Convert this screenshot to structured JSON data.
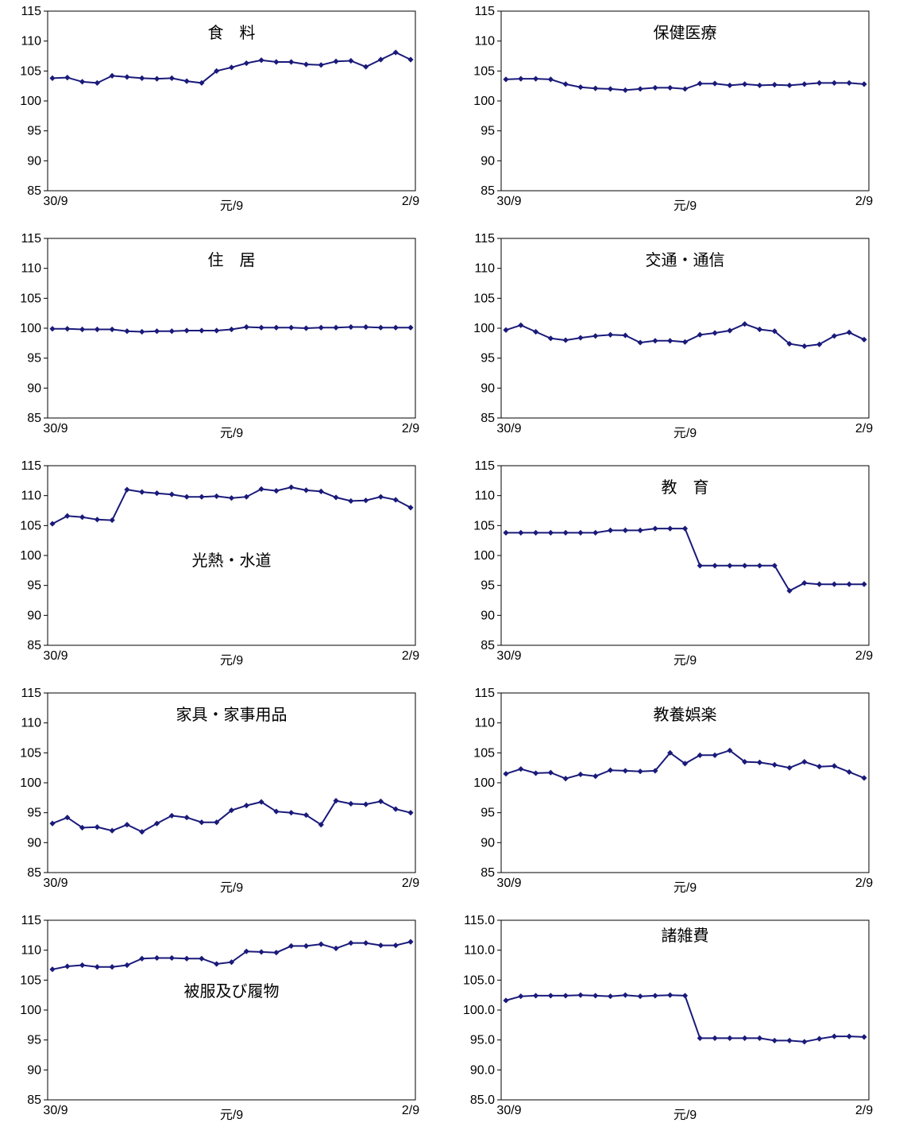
{
  "line_color": "#1a1a7a",
  "chart_data": [
    {
      "type": "line",
      "title": "食　料",
      "xticks": [
        "30/9",
        "元/9",
        "2/9"
      ],
      "ylim": [
        85,
        115
      ],
      "yticks": [
        "85",
        "90",
        "95",
        "100",
        "105",
        "110",
        "115"
      ],
      "values": [
        103.8,
        103.9,
        103.2,
        103.0,
        104.2,
        104.0,
        103.8,
        103.7,
        103.8,
        103.3,
        103.0,
        105.0,
        105.6,
        106.3,
        106.8,
        106.5,
        106.5,
        106.1,
        106.0,
        106.6,
        106.7,
        105.7,
        106.9,
        108.1,
        106.9
      ]
    },
    {
      "type": "line",
      "title": "保健医療",
      "xticks": [
        "30/9",
        "元/9",
        "2/9"
      ],
      "ylim": [
        85,
        115
      ],
      "yticks": [
        "85",
        "90",
        "95",
        "100",
        "105",
        "110",
        "115"
      ],
      "values": [
        103.6,
        103.7,
        103.7,
        103.6,
        102.8,
        102.3,
        102.1,
        102.0,
        101.8,
        102.0,
        102.2,
        102.2,
        102.0,
        102.9,
        102.9,
        102.6,
        102.8,
        102.6,
        102.7,
        102.6,
        102.8,
        103.0,
        103.0,
        103.0,
        102.8
      ]
    },
    {
      "type": "line",
      "title": "住　居",
      "xticks": [
        "30/9",
        "元/9",
        "2/9"
      ],
      "ylim": [
        85,
        115
      ],
      "yticks": [
        "85",
        "90",
        "95",
        "100",
        "105",
        "110",
        "115"
      ],
      "values": [
        99.9,
        99.9,
        99.8,
        99.8,
        99.8,
        99.5,
        99.4,
        99.5,
        99.5,
        99.6,
        99.6,
        99.6,
        99.8,
        100.2,
        100.1,
        100.1,
        100.1,
        100.0,
        100.1,
        100.1,
        100.2,
        100.2,
        100.1,
        100.1,
        100.1
      ]
    },
    {
      "type": "line",
      "title": "交通・通信",
      "xticks": [
        "30/9",
        "元/9",
        "2/9"
      ],
      "ylim": [
        85,
        115
      ],
      "yticks": [
        "85",
        "90",
        "95",
        "100",
        "105",
        "110",
        "115"
      ],
      "values": [
        99.7,
        100.5,
        99.4,
        98.3,
        98.0,
        98.4,
        98.7,
        98.9,
        98.8,
        97.6,
        97.9,
        97.9,
        97.7,
        98.9,
        99.2,
        99.6,
        100.7,
        99.8,
        99.5,
        97.4,
        97.0,
        97.3,
        98.7,
        99.3,
        98.1
      ]
    },
    {
      "type": "line",
      "title": "光熱・水道",
      "xticks": [
        "30/9",
        "元/9",
        "2/9"
      ],
      "ylim": [
        85,
        115
      ],
      "yticks": [
        "85",
        "90",
        "95",
        "100",
        "105",
        "110",
        "115"
      ],
      "values": [
        105.3,
        106.6,
        106.4,
        106.0,
        105.9,
        111.0,
        110.6,
        110.4,
        110.2,
        109.8,
        109.8,
        109.9,
        109.6,
        109.8,
        111.1,
        110.8,
        111.4,
        110.9,
        110.7,
        109.7,
        109.1,
        109.2,
        109.8,
        109.3,
        108.0
      ]
    },
    {
      "type": "line",
      "title": "教　育",
      "xticks": [
        "30/9",
        "元/9",
        "2/9"
      ],
      "ylim": [
        85,
        115
      ],
      "yticks": [
        "85",
        "90",
        "95",
        "100",
        "105",
        "110",
        "115"
      ],
      "values": [
        103.8,
        103.8,
        103.8,
        103.8,
        103.8,
        103.8,
        103.8,
        104.2,
        104.2,
        104.2,
        104.5,
        104.5,
        104.5,
        98.3,
        98.3,
        98.3,
        98.3,
        98.3,
        98.3,
        94.1,
        95.4,
        95.2,
        95.2,
        95.2,
        95.2
      ]
    },
    {
      "type": "line",
      "title": "家具・家事用品",
      "xticks": [
        "30/9",
        "元/9",
        "2/9"
      ],
      "ylim": [
        85,
        115
      ],
      "yticks": [
        "85",
        "90",
        "95",
        "100",
        "105",
        "110",
        "115"
      ],
      "values": [
        93.2,
        94.2,
        92.5,
        92.6,
        92.0,
        93.0,
        91.8,
        93.2,
        94.5,
        94.2,
        93.4,
        93.4,
        95.4,
        96.2,
        96.8,
        95.2,
        95.0,
        94.6,
        93.0,
        97.0,
        96.5,
        96.4,
        96.9,
        95.6,
        95.0
      ]
    },
    {
      "type": "line",
      "title": "教養娯楽",
      "xticks": [
        "30/9",
        "元/9",
        "2/9"
      ],
      "ylim": [
        85,
        115
      ],
      "yticks": [
        "85",
        "90",
        "95",
        "100",
        "105",
        "110",
        "115"
      ],
      "values": [
        101.5,
        102.3,
        101.6,
        101.7,
        100.7,
        101.4,
        101.1,
        102.1,
        102.0,
        101.9,
        102.0,
        105.0,
        103.2,
        104.6,
        104.6,
        105.4,
        103.5,
        103.4,
        103.0,
        102.5,
        103.5,
        102.7,
        102.8,
        101.8,
        100.8
      ]
    },
    {
      "type": "line",
      "title": "被服及び履物",
      "xticks": [
        "30/9",
        "元/9",
        "2/9"
      ],
      "ylim": [
        85,
        115
      ],
      "yticks": [
        "85",
        "90",
        "95",
        "100",
        "105",
        "110",
        "115"
      ],
      "values": [
        106.8,
        107.3,
        107.5,
        107.2,
        107.2,
        107.5,
        108.6,
        108.7,
        108.7,
        108.6,
        108.6,
        107.7,
        108.0,
        109.8,
        109.7,
        109.6,
        110.7,
        110.7,
        111.0,
        110.3,
        111.2,
        111.2,
        110.8,
        110.8,
        111.4
      ]
    },
    {
      "type": "line",
      "title": "諸雑費",
      "xticks": [
        "30/9",
        "元/9",
        "2/9"
      ],
      "ylim": [
        85,
        115
      ],
      "yticks": [
        "85.0",
        "90.0",
        "95.0",
        "100.0",
        "105.0",
        "110.0",
        "115.0"
      ],
      "values": [
        101.6,
        102.3,
        102.4,
        102.4,
        102.4,
        102.5,
        102.4,
        102.3,
        102.5,
        102.3,
        102.4,
        102.5,
        102.4,
        95.3,
        95.3,
        95.3,
        95.3,
        95.3,
        94.9,
        94.9,
        94.7,
        95.2,
        95.6,
        95.6,
        95.5
      ]
    }
  ]
}
